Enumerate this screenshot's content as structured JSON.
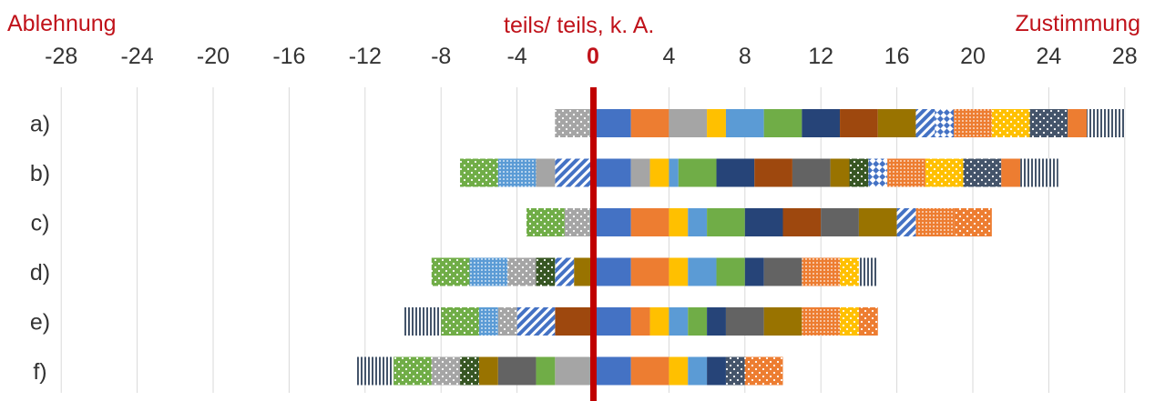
{
  "chart_data": {
    "type": "bar",
    "orientation": "horizontal-diverging",
    "stacked": true,
    "header": {
      "left": "Ablehnung",
      "center": "teils/ teils, k. A.",
      "right": "Zustimmung"
    },
    "x_ticks": [
      -28,
      -24,
      -20,
      -16,
      -12,
      -8,
      -4,
      0,
      4,
      8,
      12,
      16,
      20,
      24,
      28
    ],
    "xlim": [
      -28,
      28
    ],
    "grid": "vertical",
    "zero_line_color": "#c00000",
    "categories": [
      "a)",
      "b)",
      "c)",
      "d)",
      "e)",
      "f)"
    ],
    "rows": [
      {
        "negative": [
          {
            "value": 2,
            "color": "#a5a5a5",
            "pattern": "dots"
          }
        ],
        "positive": [
          {
            "value": 2,
            "color": "#4472c4",
            "pattern": "solid"
          },
          {
            "value": 2,
            "color": "#ed7d31",
            "pattern": "solid"
          },
          {
            "value": 2,
            "color": "#a5a5a5",
            "pattern": "solid"
          },
          {
            "value": 1,
            "color": "#ffc000",
            "pattern": "solid"
          },
          {
            "value": 2,
            "color": "#5b9bd5",
            "pattern": "solid"
          },
          {
            "value": 2,
            "color": "#70ad47",
            "pattern": "solid"
          },
          {
            "value": 2,
            "color": "#264478",
            "pattern": "solid"
          },
          {
            "value": 2,
            "color": "#9e480e",
            "pattern": "solid"
          },
          {
            "value": 2,
            "color": "#997300",
            "pattern": "solid"
          },
          {
            "value": 1,
            "color": "#4472c4",
            "pattern": "diag"
          },
          {
            "value": 1,
            "color": "#4472c4",
            "pattern": "checker"
          },
          {
            "value": 2,
            "color": "#ed7d31",
            "pattern": "smallgrid"
          },
          {
            "value": 2,
            "color": "#ffc000",
            "pattern": "dots"
          },
          {
            "value": 2,
            "color": "#44546a",
            "pattern": "dots"
          },
          {
            "value": 1,
            "color": "#ed7d31",
            "pattern": "solid"
          },
          {
            "value": 2,
            "color": "#44546a",
            "pattern": "vlines"
          }
        ]
      },
      {
        "negative": [
          {
            "value": 2,
            "color": "#4472c4",
            "pattern": "diag"
          },
          {
            "value": 1,
            "color": "#a5a5a5",
            "pattern": "solid"
          },
          {
            "value": 2,
            "color": "#5b9bd5",
            "pattern": "smallgrid"
          },
          {
            "value": 2,
            "color": "#70ad47",
            "pattern": "dots"
          }
        ],
        "positive": [
          {
            "value": 2,
            "color": "#4472c4",
            "pattern": "solid"
          },
          {
            "value": 1,
            "color": "#a5a5a5",
            "pattern": "solid"
          },
          {
            "value": 1,
            "color": "#ffc000",
            "pattern": "solid"
          },
          {
            "value": 0.5,
            "color": "#5b9bd5",
            "pattern": "solid"
          },
          {
            "value": 2,
            "color": "#70ad47",
            "pattern": "solid"
          },
          {
            "value": 2,
            "color": "#264478",
            "pattern": "solid"
          },
          {
            "value": 2,
            "color": "#9e480e",
            "pattern": "solid"
          },
          {
            "value": 2,
            "color": "#636363",
            "pattern": "solid"
          },
          {
            "value": 1,
            "color": "#997300",
            "pattern": "solid"
          },
          {
            "value": 1,
            "color": "#375623",
            "pattern": "dots"
          },
          {
            "value": 1,
            "color": "#4472c4",
            "pattern": "checker"
          },
          {
            "value": 2,
            "color": "#ed7d31",
            "pattern": "smallgrid"
          },
          {
            "value": 2,
            "color": "#ffc000",
            "pattern": "dots"
          },
          {
            "value": 2,
            "color": "#44546a",
            "pattern": "dots"
          },
          {
            "value": 1,
            "color": "#ed7d31",
            "pattern": "solid"
          },
          {
            "value": 2,
            "color": "#44546a",
            "pattern": "vlines"
          }
        ]
      },
      {
        "negative": [
          {
            "value": 1.5,
            "color": "#a5a5a5",
            "pattern": "dots"
          },
          {
            "value": 2,
            "color": "#70ad47",
            "pattern": "dots"
          }
        ],
        "positive": [
          {
            "value": 2,
            "color": "#4472c4",
            "pattern": "solid"
          },
          {
            "value": 2,
            "color": "#ed7d31",
            "pattern": "solid"
          },
          {
            "value": 1,
            "color": "#ffc000",
            "pattern": "solid"
          },
          {
            "value": 1,
            "color": "#5b9bd5",
            "pattern": "solid"
          },
          {
            "value": 2,
            "color": "#70ad47",
            "pattern": "solid"
          },
          {
            "value": 2,
            "color": "#264478",
            "pattern": "solid"
          },
          {
            "value": 2,
            "color": "#9e480e",
            "pattern": "solid"
          },
          {
            "value": 2,
            "color": "#636363",
            "pattern": "solid"
          },
          {
            "value": 2,
            "color": "#997300",
            "pattern": "solid"
          },
          {
            "value": 1,
            "color": "#4472c4",
            "pattern": "diag"
          },
          {
            "value": 2,
            "color": "#ed7d31",
            "pattern": "smallgrid"
          },
          {
            "value": 2,
            "color": "#ed7d31",
            "pattern": "dots"
          }
        ]
      },
      {
        "negative": [
          {
            "value": 1,
            "color": "#997300",
            "pattern": "solid"
          },
          {
            "value": 1,
            "color": "#4472c4",
            "pattern": "diag"
          },
          {
            "value": 1,
            "color": "#375623",
            "pattern": "dots"
          },
          {
            "value": 1.5,
            "color": "#a5a5a5",
            "pattern": "dots"
          },
          {
            "value": 2,
            "color": "#5b9bd5",
            "pattern": "smallgrid"
          },
          {
            "value": 2,
            "color": "#70ad47",
            "pattern": "dots"
          }
        ],
        "positive": [
          {
            "value": 2,
            "color": "#4472c4",
            "pattern": "solid"
          },
          {
            "value": 2,
            "color": "#ed7d31",
            "pattern": "solid"
          },
          {
            "value": 1,
            "color": "#ffc000",
            "pattern": "solid"
          },
          {
            "value": 1.5,
            "color": "#5b9bd5",
            "pattern": "solid"
          },
          {
            "value": 1.5,
            "color": "#70ad47",
            "pattern": "solid"
          },
          {
            "value": 1,
            "color": "#264478",
            "pattern": "solid"
          },
          {
            "value": 2,
            "color": "#636363",
            "pattern": "solid"
          },
          {
            "value": 2,
            "color": "#ed7d31",
            "pattern": "smallgrid"
          },
          {
            "value": 1,
            "color": "#ffc000",
            "pattern": "dots"
          },
          {
            "value": 1,
            "color": "#44546a",
            "pattern": "vlines"
          }
        ]
      },
      {
        "negative": [
          {
            "value": 2,
            "color": "#9e480e",
            "pattern": "solid"
          },
          {
            "value": 2,
            "color": "#4472c4",
            "pattern": "diag"
          },
          {
            "value": 1,
            "color": "#a5a5a5",
            "pattern": "dots"
          },
          {
            "value": 1,
            "color": "#5b9bd5",
            "pattern": "smallgrid"
          },
          {
            "value": 2,
            "color": "#70ad47",
            "pattern": "dots"
          },
          {
            "value": 2,
            "color": "#44546a",
            "pattern": "vlines"
          }
        ],
        "positive": [
          {
            "value": 2,
            "color": "#4472c4",
            "pattern": "solid"
          },
          {
            "value": 1,
            "color": "#ed7d31",
            "pattern": "solid"
          },
          {
            "value": 1,
            "color": "#ffc000",
            "pattern": "solid"
          },
          {
            "value": 1,
            "color": "#5b9bd5",
            "pattern": "solid"
          },
          {
            "value": 1,
            "color": "#70ad47",
            "pattern": "solid"
          },
          {
            "value": 1,
            "color": "#264478",
            "pattern": "solid"
          },
          {
            "value": 2,
            "color": "#636363",
            "pattern": "solid"
          },
          {
            "value": 2,
            "color": "#997300",
            "pattern": "solid"
          },
          {
            "value": 2,
            "color": "#ed7d31",
            "pattern": "smallgrid"
          },
          {
            "value": 1,
            "color": "#ffc000",
            "pattern": "dots"
          },
          {
            "value": 1,
            "color": "#ed7d31",
            "pattern": "dots"
          }
        ]
      },
      {
        "negative": [
          {
            "value": 2,
            "color": "#a5a5a5",
            "pattern": "solid"
          },
          {
            "value": 1,
            "color": "#70ad47",
            "pattern": "solid"
          },
          {
            "value": 2,
            "color": "#636363",
            "pattern": "solid"
          },
          {
            "value": 1,
            "color": "#997300",
            "pattern": "solid"
          },
          {
            "value": 1,
            "color": "#375623",
            "pattern": "dots"
          },
          {
            "value": 1.5,
            "color": "#a5a5a5",
            "pattern": "dots"
          },
          {
            "value": 2,
            "color": "#70ad47",
            "pattern": "dots"
          },
          {
            "value": 2,
            "color": "#44546a",
            "pattern": "vlines"
          }
        ],
        "positive": [
          {
            "value": 2,
            "color": "#4472c4",
            "pattern": "solid"
          },
          {
            "value": 2,
            "color": "#ed7d31",
            "pattern": "solid"
          },
          {
            "value": 1,
            "color": "#ffc000",
            "pattern": "solid"
          },
          {
            "value": 1,
            "color": "#5b9bd5",
            "pattern": "solid"
          },
          {
            "value": 1,
            "color": "#264478",
            "pattern": "solid"
          },
          {
            "value": 1,
            "color": "#44546a",
            "pattern": "dots"
          },
          {
            "value": 2,
            "color": "#ed7d31",
            "pattern": "dots"
          }
        ]
      }
    ]
  }
}
